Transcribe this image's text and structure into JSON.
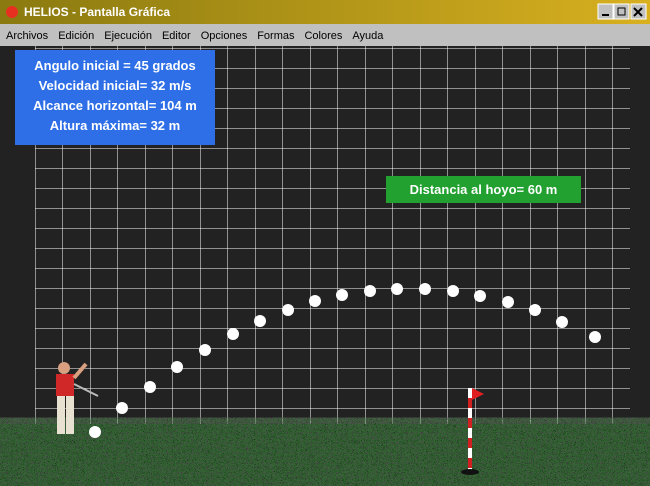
{
  "window": {
    "title": "HELIOS - Pantalla Gráfica"
  },
  "menu": [
    "Archivos",
    "Edición",
    "Ejecución",
    "Editor",
    "Opciones",
    "Formas",
    "Colores",
    "Ayuda"
  ],
  "info": [
    "Angulo inicial = 45 grados",
    "Velocidad inicial= 32 m/s",
    "Alcance horizontal= 104 m",
    "Altura máxima= 32 m"
  ],
  "distance": "Distancia al hoyo= 60 m"
}
